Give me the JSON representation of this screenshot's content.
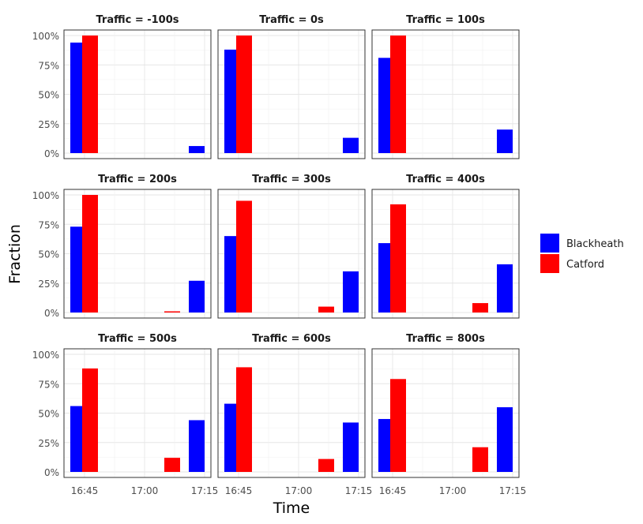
{
  "chart_data": {
    "type": "bar",
    "xlabel": "Time",
    "ylabel": "Fraction",
    "x_ticks": [
      "16:45",
      "17:00",
      "17:15"
    ],
    "y_ticks": [
      "0%",
      "25%",
      "50%",
      "75%",
      "100%"
    ],
    "ylim": [
      0,
      1.05
    ],
    "legend_placement": "right",
    "series_names": [
      "Blackheath",
      "Catford"
    ],
    "colors": {
      "Blackheath": "#0000ff",
      "Catford": "#ff0000"
    },
    "bar_times": [
      "16:45",
      "17:10"
    ],
    "facets": [
      {
        "title": "Traffic = -100s",
        "series": [
          {
            "name": "Blackheath",
            "values": [
              0.94,
              0.06
            ]
          },
          {
            "name": "Catford",
            "values": [
              1.0,
              0.0
            ]
          }
        ]
      },
      {
        "title": "Traffic = 0s",
        "series": [
          {
            "name": "Blackheath",
            "values": [
              0.88,
              0.13
            ]
          },
          {
            "name": "Catford",
            "values": [
              1.0,
              0.0
            ]
          }
        ]
      },
      {
        "title": "Traffic = 100s",
        "series": [
          {
            "name": "Blackheath",
            "values": [
              0.81,
              0.2
            ]
          },
          {
            "name": "Catford",
            "values": [
              1.0,
              0.0
            ]
          }
        ]
      },
      {
        "title": "Traffic = 200s",
        "series": [
          {
            "name": "Blackheath",
            "values": [
              0.73,
              0.27
            ]
          },
          {
            "name": "Catford",
            "values": [
              1.0,
              0.01
            ]
          }
        ]
      },
      {
        "title": "Traffic = 300s",
        "series": [
          {
            "name": "Blackheath",
            "values": [
              0.65,
              0.35
            ]
          },
          {
            "name": "Catford",
            "values": [
              0.95,
              0.05
            ]
          }
        ]
      },
      {
        "title": "Traffic = 400s",
        "series": [
          {
            "name": "Blackheath",
            "values": [
              0.59,
              0.41
            ]
          },
          {
            "name": "Catford",
            "values": [
              0.92,
              0.08
            ]
          }
        ]
      },
      {
        "title": "Traffic = 500s",
        "series": [
          {
            "name": "Blackheath",
            "values": [
              0.56,
              0.44
            ]
          },
          {
            "name": "Catford",
            "values": [
              0.88,
              0.12
            ]
          }
        ]
      },
      {
        "title": "Traffic = 600s",
        "series": [
          {
            "name": "Blackheath",
            "values": [
              0.58,
              0.42
            ]
          },
          {
            "name": "Catford",
            "values": [
              0.89,
              0.11
            ]
          }
        ]
      },
      {
        "title": "Traffic = 800s",
        "series": [
          {
            "name": "Blackheath",
            "values": [
              0.45,
              0.55
            ]
          },
          {
            "name": "Catford",
            "values": [
              0.79,
              0.21
            ]
          }
        ]
      }
    ]
  }
}
